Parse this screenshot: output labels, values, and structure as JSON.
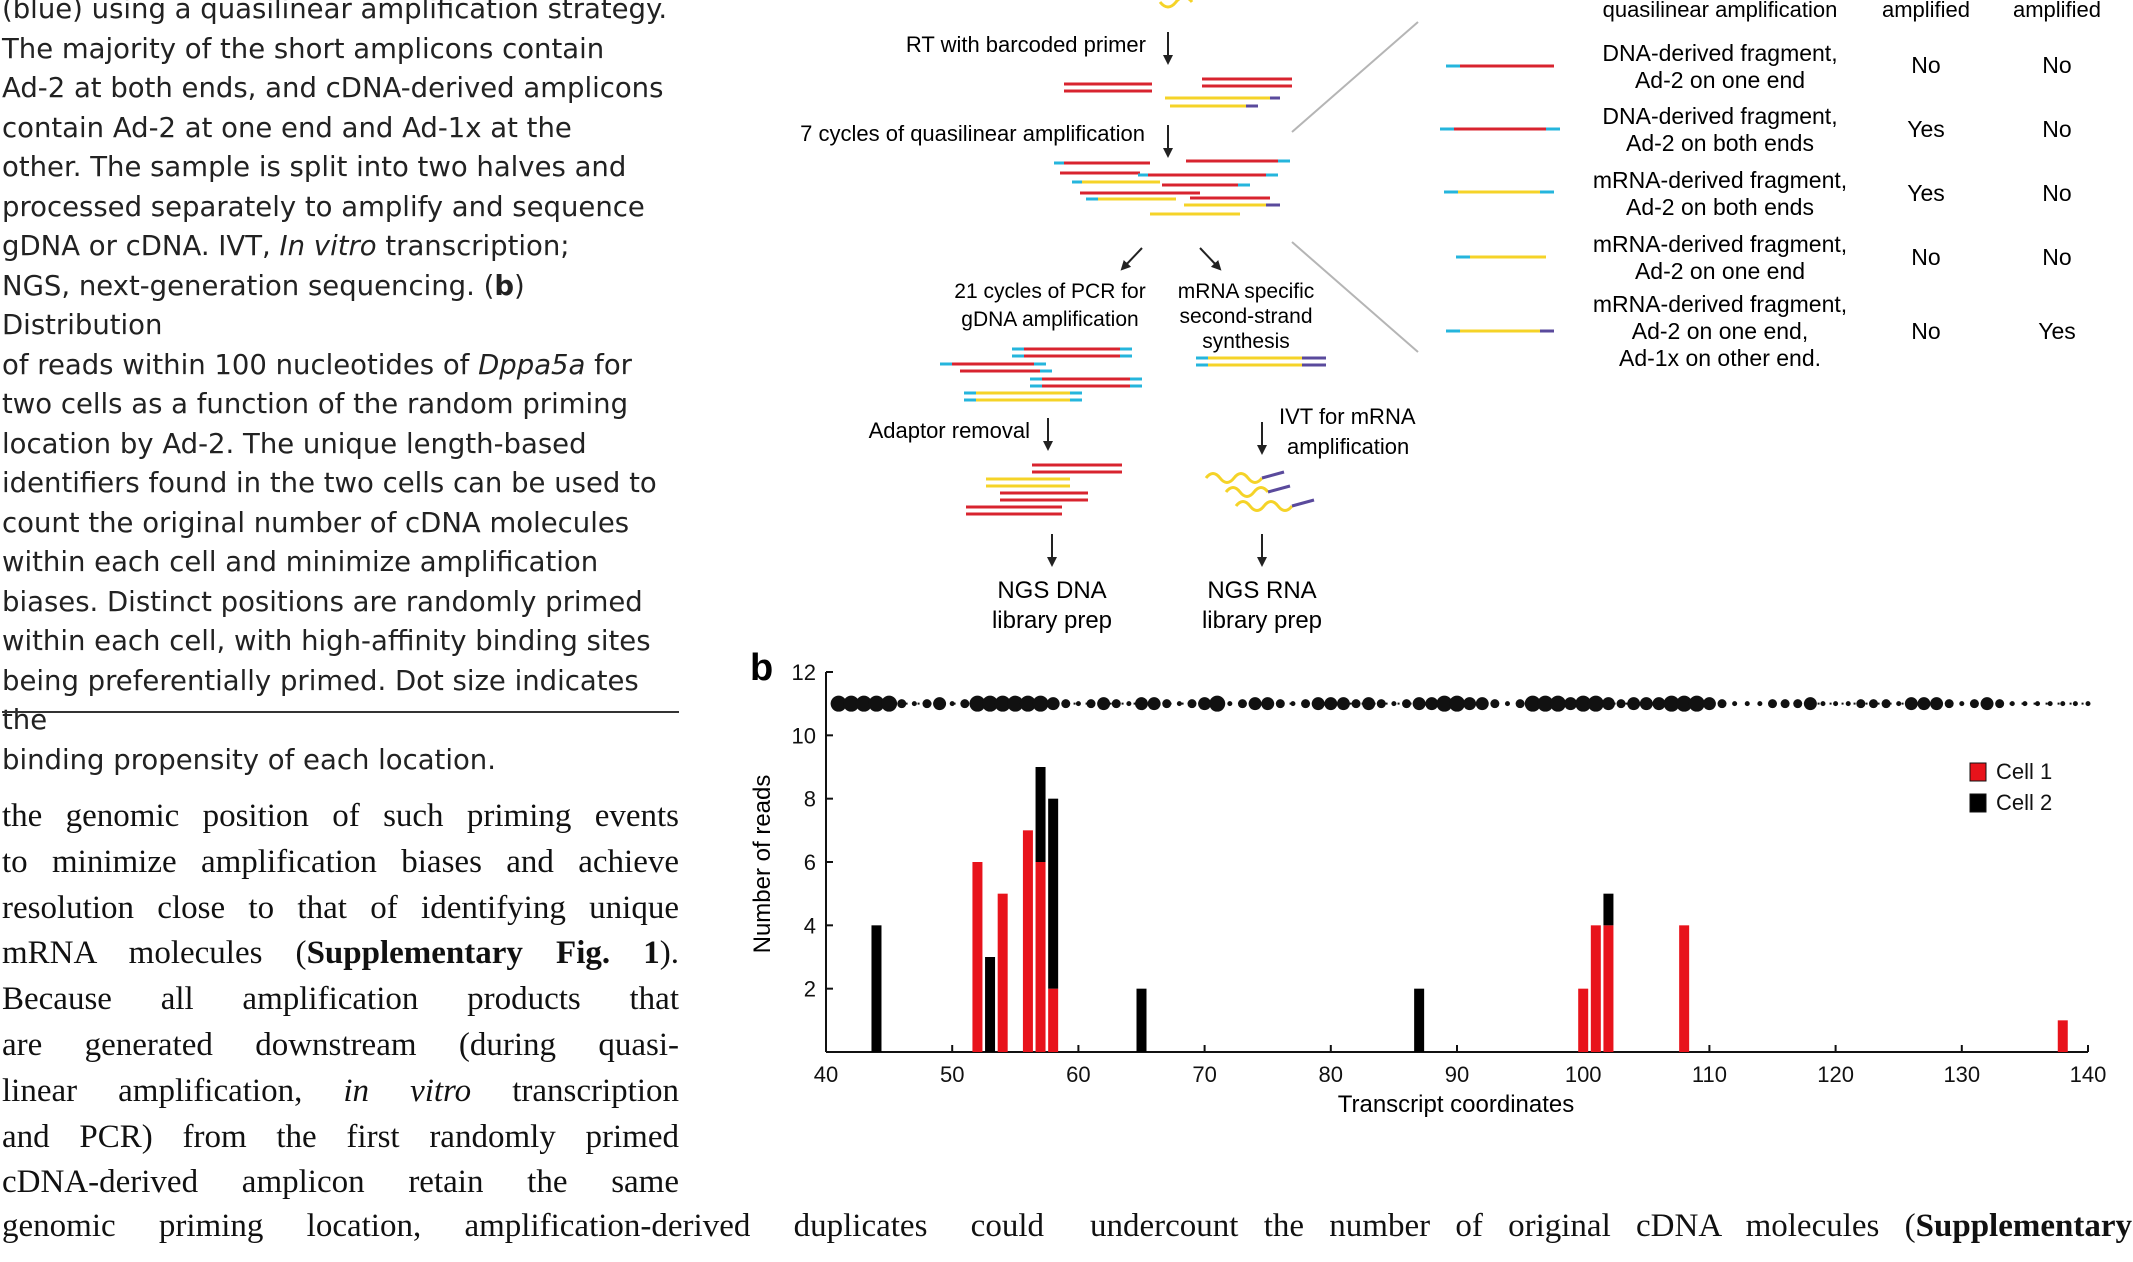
{
  "caption": {
    "lines": [
      "(blue) using a quasilinear amplification strategy.",
      "The majority of the short amplicons contain",
      "Ad-2 at both ends, and cDNA-derived amplicons",
      "contain Ad-2 at one end and Ad-1x at the",
      "other. The sample is split into two halves and",
      "processed separately to amplify and sequence",
      "gDNA or cDNA. IVT, In vitro transcription;",
      "NGS, next-generation sequencing. (b) Distribution",
      "of reads within 100 nucleotides of Dppa5a for",
      "two cells as a function of the random priming",
      "location by Ad-2. The unique length-based",
      "identifiers found in the two cells can be used to",
      "count the original number of cDNA molecules",
      "within each cell and minimize amplification",
      "biases. Distinct positions are randomly primed",
      "within each cell, with high-affinity binding sites",
      "being preferentially primed. Dot size indicates the",
      "binding propensity of each location."
    ]
  },
  "body_left": {
    "lines": [
      "the genomic position of such priming events",
      "to minimize amplification biases and achieve",
      "resolution close to that of identifying unique",
      "mRNA molecules (Supplementary Fig. 1).",
      "Because all amplification products that",
      "are generated downstream (during quasi-",
      "linear amplification, in vitro transcription",
      "and PCR) from the first randomly primed",
      "cDNA-derived amplicon retain the same"
    ]
  },
  "body_bottom_left": "genomic priming location, amplification-derived duplicates could",
  "body_bottom_right": "undercount the number of original cDNA molecules (Supplementary",
  "panel_a": {
    "steps": {
      "rt": "RT with barcoded primer",
      "quasi": "7 cycles of quasilinear amplification",
      "pcr": [
        "21 cycles of PCR for",
        "gDNA amplification"
      ],
      "second_strand": [
        "mRNA specific",
        "second-strand",
        "synthesis"
      ],
      "adaptor": "Adaptor removal",
      "ivt": [
        "IVT for mRNA",
        "amplification"
      ],
      "ngs_dna": [
        "NGS DNA",
        "library prep"
      ],
      "ngs_rna": [
        "NGS RNA",
        "library prep"
      ]
    },
    "table": {
      "headers": [
        "quasilinear amplification",
        "amplified",
        "amplified"
      ],
      "rows": [
        {
          "desc": [
            "DNA-derived fragment,",
            "Ad-2 on one end"
          ],
          "col1": "No",
          "col2": "No"
        },
        {
          "desc": [
            "DNA-derived fragment,",
            "Ad-2 on both ends"
          ],
          "col1": "Yes",
          "col2": "No"
        },
        {
          "desc": [
            "mRNA-derived fragment,",
            "Ad-2 on both ends"
          ],
          "col1": "Yes",
          "col2": "No"
        },
        {
          "desc": [
            "mRNA-derived fragment,",
            "Ad-2 on one end"
          ],
          "col1": "No",
          "col2": "No"
        },
        {
          "desc": [
            "mRNA-derived fragment,",
            "Ad-2 on one end,",
            "Ad-1x on other end."
          ],
          "col1": "No",
          "col2": "Yes"
        }
      ]
    },
    "colors": {
      "dna": "#d8242f",
      "mrna": "#f5d328",
      "ad2": "#25b5dc",
      "ad1x": "#5a4a9c"
    }
  },
  "panel_b_label": "b",
  "chart_data": {
    "type": "bar",
    "xlabel": "Transcript coordinates",
    "ylabel": "Number of reads",
    "xlim": [
      40,
      140
    ],
    "ylim": [
      0,
      12
    ],
    "xticks": [
      40,
      50,
      60,
      70,
      80,
      90,
      100,
      110,
      120,
      130,
      140
    ],
    "yticks": [
      2,
      4,
      6,
      8,
      10,
      12
    ],
    "stacked": true,
    "legend_position": "top-right",
    "series": [
      {
        "name": "Cell 1",
        "color": "#e8131b",
        "x": [
          52,
          54,
          56,
          57,
          58,
          100,
          101,
          102,
          108,
          138
        ],
        "values": [
          6,
          5,
          7,
          6,
          2,
          2,
          4,
          4,
          4,
          1
        ]
      },
      {
        "name": "Cell 2",
        "color": "#000000",
        "x": [
          44,
          53,
          57,
          58,
          65,
          87,
          102
        ],
        "values": [
          4,
          3,
          3,
          6,
          2,
          2,
          1
        ]
      }
    ],
    "binding_dots": {
      "y": 11,
      "x": [
        41,
        42,
        43,
        44,
        45,
        46,
        47,
        48,
        49,
        50,
        51,
        52,
        53,
        54,
        55,
        56,
        57,
        58,
        59,
        60,
        61,
        62,
        63,
        64,
        65,
        66,
        67,
        68,
        69,
        70,
        71,
        72,
        73,
        74,
        75,
        76,
        77,
        78,
        79,
        80,
        81,
        82,
        83,
        84,
        85,
        86,
        87,
        88,
        89,
        90,
        91,
        92,
        93,
        94,
        95,
        96,
        97,
        98,
        99,
        100,
        101,
        102,
        103,
        104,
        105,
        106,
        107,
        108,
        109,
        110,
        111,
        112,
        113,
        114,
        115,
        116,
        117,
        118,
        119,
        120,
        121,
        122,
        123,
        124,
        125,
        126,
        127,
        128,
        129,
        130,
        131,
        132,
        133,
        134,
        135,
        136,
        137,
        138,
        139,
        140
      ],
      "sizes": [
        3,
        3,
        3,
        3,
        3,
        1,
        0,
        1,
        2,
        0,
        1,
        3,
        3,
        3,
        3,
        3,
        3,
        2,
        1,
        0,
        1,
        2,
        1,
        0,
        2,
        2,
        1,
        0,
        1,
        2,
        3,
        0,
        1,
        2,
        2,
        1,
        0,
        1,
        2,
        2,
        2,
        1,
        2,
        1,
        0,
        1,
        2,
        2,
        3,
        3,
        2,
        2,
        1,
        0,
        1,
        3,
        3,
        3,
        2,
        3,
        3,
        2,
        1,
        2,
        2,
        2,
        3,
        3,
        3,
        2,
        1,
        0,
        0,
        0,
        1,
        1,
        1,
        2,
        0,
        0,
        0,
        1,
        1,
        1,
        0,
        2,
        2,
        2,
        1,
        0,
        1,
        2,
        1,
        0,
        0,
        0,
        0,
        0,
        0,
        0
      ]
    }
  }
}
